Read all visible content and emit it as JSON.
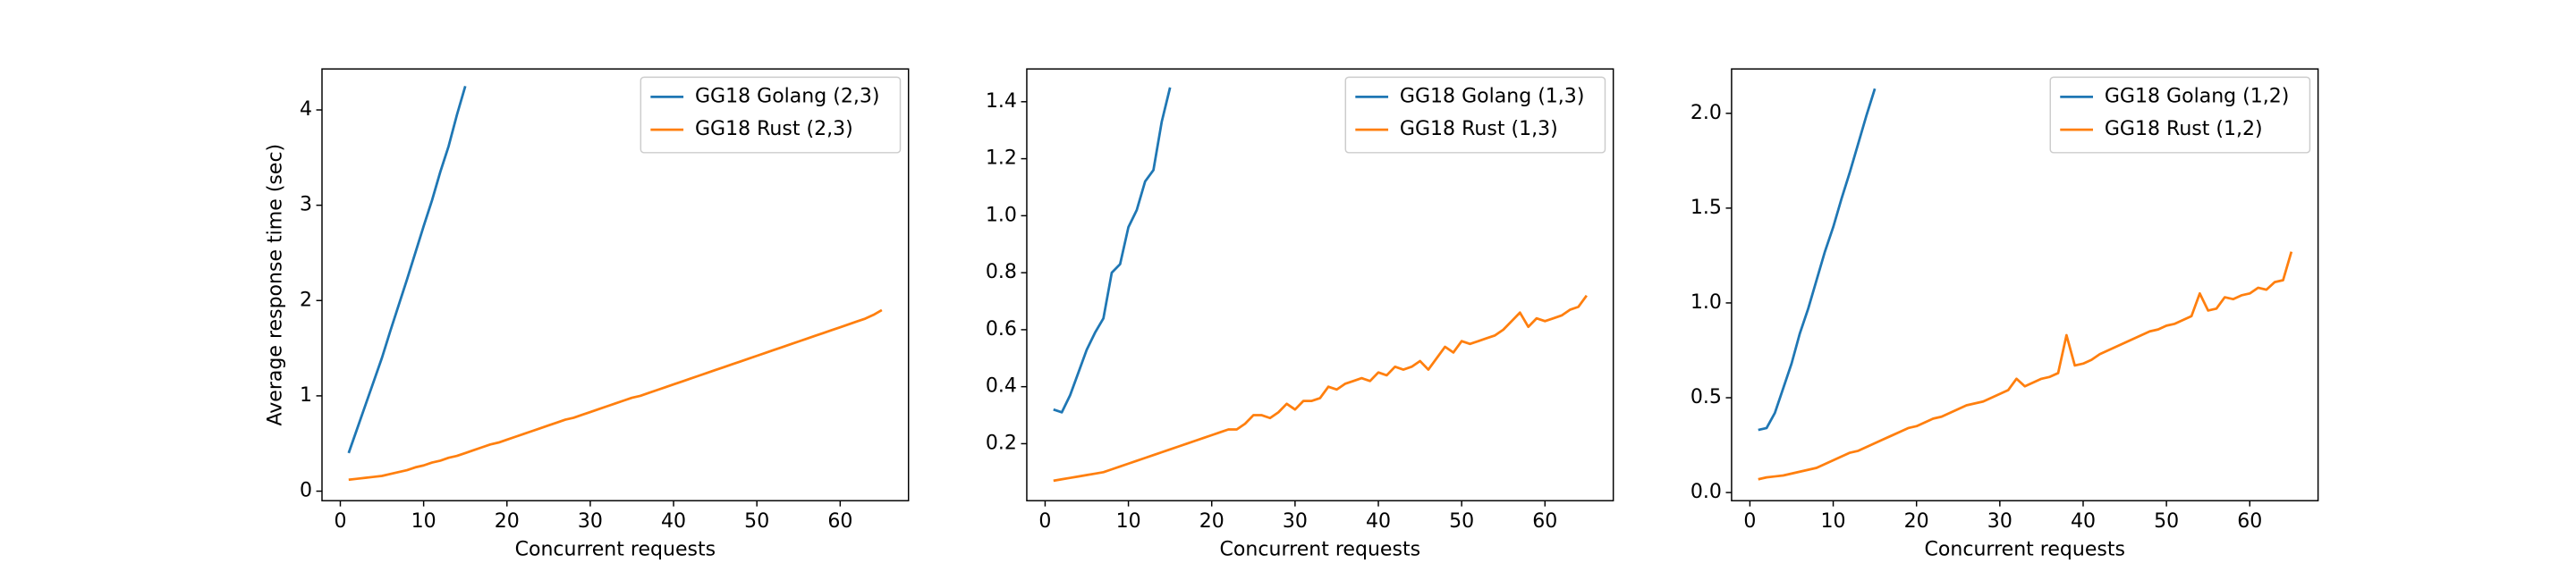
{
  "chart_data": [
    {
      "type": "line",
      "xlabel": "Concurrent requests",
      "ylabel": "Average response time (sec)",
      "xlim": [
        -2.2,
        68.2
      ],
      "ylim": [
        -0.1,
        4.43
      ],
      "xticks": [
        0,
        10,
        20,
        30,
        40,
        50,
        60
      ],
      "yticks": [
        0,
        1,
        2,
        3,
        4
      ],
      "legend": "upper right",
      "x": [
        1,
        2,
        3,
        4,
        5,
        6,
        7,
        8,
        9,
        10,
        11,
        12,
        13,
        14,
        15,
        16,
        17,
        18,
        19,
        20,
        21,
        22,
        23,
        24,
        25,
        26,
        27,
        28,
        29,
        30,
        31,
        32,
        33,
        34,
        35,
        36,
        37,
        38,
        39,
        40,
        41,
        42,
        43,
        44,
        45,
        46,
        47,
        48,
        49,
        50,
        51,
        52,
        53,
        54,
        55,
        56,
        57,
        58,
        59,
        60,
        61,
        62,
        63,
        64,
        65
      ],
      "series": [
        {
          "name": "GG18 Golang (2,3)",
          "color": "#1f77b4",
          "values": [
            0.4,
            0.65,
            0.9,
            1.15,
            1.4,
            1.68,
            1.95,
            2.22,
            2.5,
            2.78,
            3.05,
            3.35,
            3.62,
            3.95,
            4.25,
            null,
            null,
            null,
            null,
            null,
            null,
            null,
            null,
            null,
            null,
            null,
            null,
            null,
            null,
            null,
            null,
            null,
            null,
            null,
            null,
            null,
            null,
            null,
            null,
            null,
            null,
            null,
            null,
            null,
            null,
            null,
            null,
            null,
            null,
            null,
            null,
            null,
            null,
            null,
            null,
            null,
            null,
            null,
            null,
            null,
            null,
            null,
            null,
            null,
            null
          ]
        },
        {
          "name": "GG18 Rust (2,3)",
          "color": "#ff7f0e",
          "values": [
            0.12,
            0.13,
            0.14,
            0.15,
            0.16,
            0.18,
            0.2,
            0.22,
            0.25,
            0.27,
            0.3,
            0.32,
            0.35,
            0.37,
            0.4,
            0.43,
            0.46,
            0.49,
            0.51,
            0.54,
            0.57,
            0.6,
            0.63,
            0.66,
            0.69,
            0.72,
            0.75,
            0.77,
            0.8,
            0.83,
            0.86,
            0.89,
            0.92,
            0.95,
            0.98,
            1.0,
            1.03,
            1.06,
            1.09,
            1.12,
            1.15,
            1.18,
            1.21,
            1.24,
            1.27,
            1.3,
            1.33,
            1.36,
            1.39,
            1.42,
            1.45,
            1.48,
            1.51,
            1.54,
            1.57,
            1.6,
            1.63,
            1.66,
            1.69,
            1.72,
            1.75,
            1.78,
            1.81,
            1.85,
            1.9
          ]
        }
      ]
    },
    {
      "type": "line",
      "xlabel": "Concurrent requests",
      "xlim": [
        -2.2,
        68.2
      ],
      "ylim": [
        0.0,
        1.515
      ],
      "xticks": [
        0,
        10,
        20,
        30,
        40,
        50,
        60
      ],
      "yticks": [
        0.2,
        0.4,
        0.6,
        0.8,
        {
          "value": 1,
          "label": "1.0"
        },
        1.2,
        1.4
      ],
      "legend": "upper right",
      "x": [
        1,
        2,
        3,
        4,
        5,
        6,
        7,
        8,
        9,
        10,
        11,
        12,
        13,
        14,
        15,
        16,
        17,
        18,
        19,
        20,
        21,
        22,
        23,
        24,
        25,
        26,
        27,
        28,
        29,
        30,
        31,
        32,
        33,
        34,
        35,
        36,
        37,
        38,
        39,
        40,
        41,
        42,
        43,
        44,
        45,
        46,
        47,
        48,
        49,
        50,
        51,
        52,
        53,
        54,
        55,
        56,
        57,
        58,
        59,
        60,
        61,
        62,
        63,
        64,
        65
      ],
      "series": [
        {
          "name": "GG18 Golang (1,3)",
          "color": "#1f77b4",
          "values": [
            0.32,
            0.31,
            0.37,
            0.45,
            0.53,
            0.59,
            0.64,
            0.8,
            0.83,
            0.96,
            1.02,
            1.12,
            1.16,
            1.33,
            1.45,
            null,
            null,
            null,
            null,
            null,
            null,
            null,
            null,
            null,
            null,
            null,
            null,
            null,
            null,
            null,
            null,
            null,
            null,
            null,
            null,
            null,
            null,
            null,
            null,
            null,
            null,
            null,
            null,
            null,
            null,
            null,
            null,
            null,
            null,
            null,
            null,
            null,
            null,
            null,
            null,
            null,
            null,
            null,
            null,
            null,
            null,
            null,
            null,
            null,
            null
          ]
        },
        {
          "name": "GG18 Rust (1,3)",
          "color": "#ff7f0e",
          "values": [
            0.07,
            0.075,
            0.08,
            0.085,
            0.09,
            0.095,
            0.1,
            0.11,
            0.12,
            0.13,
            0.14,
            0.15,
            0.16,
            0.17,
            0.18,
            0.19,
            0.2,
            0.21,
            0.22,
            0.23,
            0.24,
            0.25,
            0.25,
            0.27,
            0.3,
            0.3,
            0.29,
            0.31,
            0.34,
            0.32,
            0.35,
            0.35,
            0.36,
            0.4,
            0.39,
            0.41,
            0.42,
            0.43,
            0.42,
            0.45,
            0.44,
            0.47,
            0.46,
            0.47,
            0.49,
            0.46,
            0.5,
            0.54,
            0.52,
            0.56,
            0.55,
            0.56,
            0.57,
            0.58,
            0.6,
            0.63,
            0.66,
            0.61,
            0.64,
            0.63,
            0.64,
            0.65,
            0.67,
            0.68,
            0.72
          ]
        }
      ]
    },
    {
      "type": "line",
      "xlabel": "Concurrent requests",
      "xlim": [
        -2.2,
        68.2
      ],
      "ylim": [
        -0.043,
        2.234
      ],
      "xticks": [
        0,
        10,
        20,
        30,
        40,
        50,
        60
      ],
      "yticks": [
        {
          "value": 0,
          "label": "0.0"
        },
        0.5,
        {
          "value": 1,
          "label": "1.0"
        },
        1.5,
        {
          "value": 2,
          "label": "2.0"
        }
      ],
      "legend": "upper right",
      "x": [
        1,
        2,
        3,
        4,
        5,
        6,
        7,
        8,
        9,
        10,
        11,
        12,
        13,
        14,
        15,
        16,
        17,
        18,
        19,
        20,
        21,
        22,
        23,
        24,
        25,
        26,
        27,
        28,
        29,
        30,
        31,
        32,
        33,
        34,
        35,
        36,
        37,
        38,
        39,
        40,
        41,
        42,
        43,
        44,
        45,
        46,
        47,
        48,
        49,
        50,
        51,
        52,
        53,
        54,
        55,
        56,
        57,
        58,
        59,
        60,
        61,
        62,
        63,
        64,
        65
      ],
      "series": [
        {
          "name": "GG18 Golang (1,2)",
          "color": "#1f77b4",
          "values": [
            0.33,
            0.34,
            0.42,
            0.55,
            0.68,
            0.84,
            0.97,
            1.12,
            1.27,
            1.4,
            1.55,
            1.69,
            1.84,
            1.99,
            2.13,
            null,
            null,
            null,
            null,
            null,
            null,
            null,
            null,
            null,
            null,
            null,
            null,
            null,
            null,
            null,
            null,
            null,
            null,
            null,
            null,
            null,
            null,
            null,
            null,
            null,
            null,
            null,
            null,
            null,
            null,
            null,
            null,
            null,
            null,
            null,
            null,
            null,
            null,
            null,
            null,
            null,
            null,
            null,
            null,
            null,
            null,
            null,
            null,
            null,
            null
          ]
        },
        {
          "name": "GG18 Rust (1,2)",
          "color": "#ff7f0e",
          "values": [
            0.07,
            0.08,
            0.085,
            0.09,
            0.1,
            0.11,
            0.12,
            0.13,
            0.15,
            0.17,
            0.19,
            0.21,
            0.22,
            0.24,
            0.26,
            0.28,
            0.3,
            0.32,
            0.34,
            0.35,
            0.37,
            0.39,
            0.4,
            0.42,
            0.44,
            0.46,
            0.47,
            0.48,
            0.5,
            0.52,
            0.54,
            0.6,
            0.56,
            0.58,
            0.6,
            0.61,
            0.63,
            0.83,
            0.67,
            0.68,
            0.7,
            0.73,
            0.75,
            0.77,
            0.79,
            0.81,
            0.83,
            0.85,
            0.86,
            0.88,
            0.89,
            0.91,
            0.93,
            1.05,
            0.96,
            0.97,
            1.03,
            1.02,
            1.04,
            1.05,
            1.08,
            1.07,
            1.11,
            1.12,
            1.27
          ]
        }
      ]
    }
  ]
}
